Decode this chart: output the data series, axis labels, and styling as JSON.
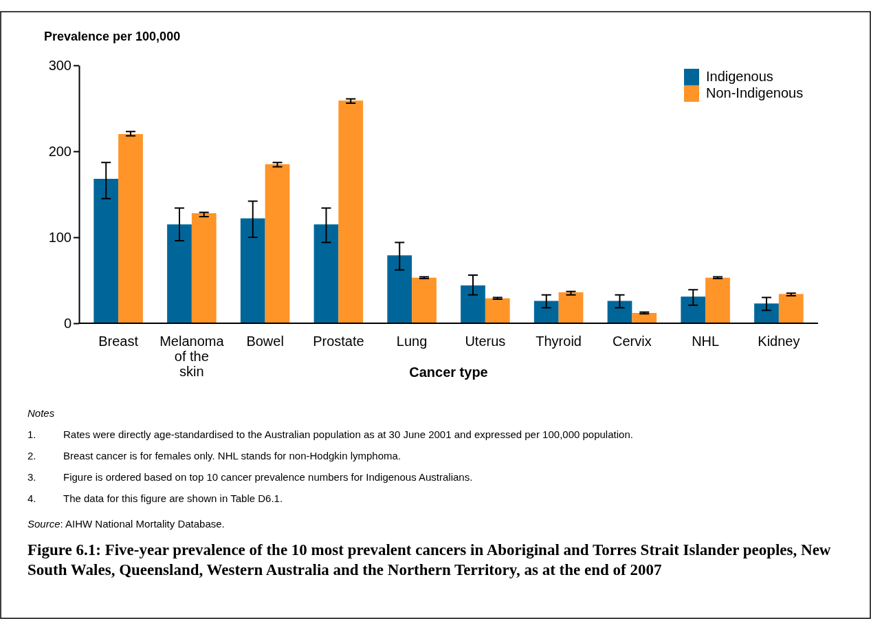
{
  "chart_data": {
    "type": "bar",
    "title": "Figure 6.1: Five-year prevalence of the 10 most prevalent cancers in Aboriginal and Torres Strait Islander peoples, New South Wales, Queensland, Western Australia and the Northern Territory, as at the end of 2007",
    "ylabel": "Prevalence per 100,000",
    "xlabel": "Cancer type",
    "categories": [
      "Breast",
      "Melanoma of the skin",
      "Bowel",
      "Prostate",
      "Lung",
      "Uterus",
      "Thyroid",
      "Cervix",
      "NHL",
      "Kidney"
    ],
    "series": [
      {
        "name": "Indigenous",
        "color": "#006699",
        "values": [
          168,
          115,
          122,
          115,
          79,
          44,
          26,
          26,
          31,
          23
        ],
        "errors": [
          [
            145,
            187
          ],
          [
            96,
            134
          ],
          [
            100,
            142
          ],
          [
            94,
            134
          ],
          [
            62,
            94
          ],
          [
            33,
            56
          ],
          [
            18,
            33
          ],
          [
            18,
            33
          ],
          [
            21,
            39
          ],
          [
            15,
            30
          ]
        ]
      },
      {
        "name": "Non-Indigenous",
        "color": "#ff9428",
        "values": [
          220,
          128,
          185,
          259,
          53,
          29,
          36,
          12,
          53,
          34
        ],
        "errors": [
          [
            218,
            223
          ],
          [
            124,
            129
          ],
          [
            182,
            187
          ],
          [
            256,
            261
          ],
          [
            52,
            54
          ],
          [
            28,
            30
          ],
          [
            33,
            37
          ],
          [
            11,
            13
          ],
          [
            52,
            54
          ],
          [
            32,
            35
          ]
        ]
      }
    ],
    "ylim": [
      0,
      300
    ],
    "yticks": [
      0,
      100,
      200,
      300
    ],
    "grid": false,
    "legend": "top right",
    "annotations": [
      "Notes",
      "1. Rates were directly age-standardised to the Australian population as at 30 June 2001 and expressed per 100,000 population.",
      "2. Breast cancer is for females only. NHL stands for non-Hodgkin lymphoma.",
      "3. Figure is ordered based on top 10 cancer prevalence numbers for Indigenous Australians.",
      "4. The data for this figure are shown in Table D6.1.",
      "Source: AIHW National Mortality Database."
    ]
  }
}
